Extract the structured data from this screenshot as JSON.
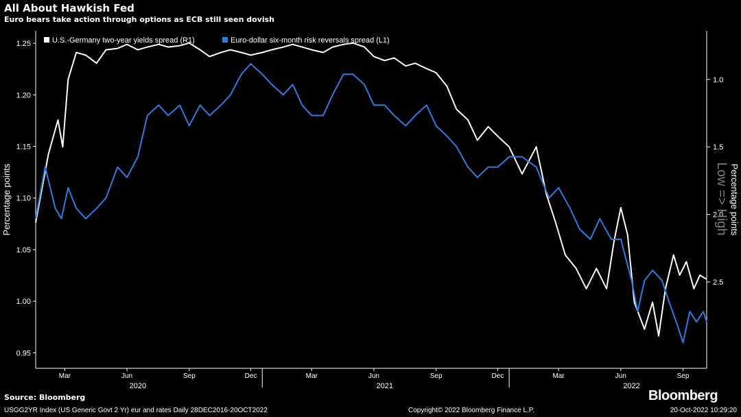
{
  "title": "All About Hawkish Fed",
  "subtitle": "Euro bears take action through options as ECB still seen dovish",
  "source": "Source: Bloomberg",
  "logo": "Bloomberg",
  "footer": {
    "left": "USGG2YR Index (US Generic Govt 2 Yr) eur and rates  Daily 28DEC2016-20OCT2022",
    "center": "Copyright© 2022 Bloomberg Finance L.P.",
    "right": "20-Oct-2022 10:29:20"
  },
  "colors": {
    "background": "#000000",
    "us_germany": "#ffffff",
    "risk_reversals": "#2a7de1",
    "axis": "#ffffff",
    "side_annotation": "#7f7f7f"
  },
  "chart_data": {
    "type": "line",
    "ylabel_left": "Percentage points",
    "ylabel_right": "Percentage points",
    "right_annotation": "Low => High",
    "left_axis": {
      "min": 0.935,
      "max": 1.262,
      "ticks": [
        "0.95",
        "1.00",
        "1.05",
        "1.10",
        "1.15",
        "1.20",
        "1.25"
      ]
    },
    "right_axis": {
      "inverted": true,
      "min": 0.64,
      "max": 3.14,
      "ticks": [
        "1.0",
        "1.5",
        "2.0",
        "2.5"
      ]
    },
    "x_axis": {
      "start": "2020-02-01",
      "end": "2022-10-20",
      "month_ticks": [
        {
          "label": "Mar",
          "date": "2020-03-15"
        },
        {
          "label": "Jun",
          "date": "2020-06-15"
        },
        {
          "label": "Sep",
          "date": "2020-09-15"
        },
        {
          "label": "Dec",
          "date": "2020-12-15"
        },
        {
          "label": "Mar",
          "date": "2021-03-15"
        },
        {
          "label": "Jun",
          "date": "2021-06-15"
        },
        {
          "label": "Sep",
          "date": "2021-09-15"
        },
        {
          "label": "Dec",
          "date": "2021-12-15"
        },
        {
          "label": "Mar",
          "date": "2022-03-15"
        },
        {
          "label": "Jun",
          "date": "2022-06-15"
        },
        {
          "label": "Sep",
          "date": "2022-09-15"
        }
      ],
      "year_labels": [
        {
          "label": "2020",
          "date": "2020-07-01"
        },
        {
          "label": "2021",
          "date": "2021-07-01"
        },
        {
          "label": "2022",
          "date": "2022-07-01"
        }
      ],
      "year_dividers": [
        "2021-01-01",
        "2022-01-01"
      ]
    },
    "series": [
      {
        "name": "U.S.-Germany two-year yields spread (R1)",
        "axis": "right",
        "points": [
          [
            "2020-02-01",
            2.06
          ],
          [
            "2020-02-20",
            1.55
          ],
          [
            "2020-03-05",
            1.3
          ],
          [
            "2020-03-12",
            1.5
          ],
          [
            "2020-03-20",
            1.0
          ],
          [
            "2020-04-01",
            0.8
          ],
          [
            "2020-04-15",
            0.82
          ],
          [
            "2020-05-01",
            0.88
          ],
          [
            "2020-05-15",
            0.78
          ],
          [
            "2020-06-01",
            0.77
          ],
          [
            "2020-06-15",
            0.74
          ],
          [
            "2020-07-01",
            0.78
          ],
          [
            "2020-07-15",
            0.76
          ],
          [
            "2020-08-01",
            0.74
          ],
          [
            "2020-08-15",
            0.76
          ],
          [
            "2020-09-01",
            0.75
          ],
          [
            "2020-09-15",
            0.73
          ],
          [
            "2020-10-01",
            0.78
          ],
          [
            "2020-10-15",
            0.83
          ],
          [
            "2020-11-01",
            0.8
          ],
          [
            "2020-11-15",
            0.78
          ],
          [
            "2020-12-01",
            0.8
          ],
          [
            "2020-12-15",
            0.82
          ],
          [
            "2021-01-01",
            0.8
          ],
          [
            "2021-01-15",
            0.78
          ],
          [
            "2021-02-01",
            0.76
          ],
          [
            "2021-02-15",
            0.74
          ],
          [
            "2021-03-01",
            0.76
          ],
          [
            "2021-03-15",
            0.78
          ],
          [
            "2021-04-01",
            0.8
          ],
          [
            "2021-04-15",
            0.76
          ],
          [
            "2021-05-01",
            0.74
          ],
          [
            "2021-05-15",
            0.73
          ],
          [
            "2021-06-01",
            0.76
          ],
          [
            "2021-06-15",
            0.83
          ],
          [
            "2021-07-01",
            0.86
          ],
          [
            "2021-07-15",
            0.84
          ],
          [
            "2021-08-01",
            0.9
          ],
          [
            "2021-08-15",
            0.88
          ],
          [
            "2021-09-01",
            0.92
          ],
          [
            "2021-09-15",
            0.95
          ],
          [
            "2021-10-01",
            1.05
          ],
          [
            "2021-10-15",
            1.22
          ],
          [
            "2021-11-01",
            1.3
          ],
          [
            "2021-11-15",
            1.45
          ],
          [
            "2021-12-01",
            1.35
          ],
          [
            "2021-12-15",
            1.42
          ],
          [
            "2022-01-01",
            1.5
          ],
          [
            "2022-01-20",
            1.7
          ],
          [
            "2022-02-10",
            1.5
          ],
          [
            "2022-02-25",
            1.85
          ],
          [
            "2022-03-10",
            2.05
          ],
          [
            "2022-03-25",
            2.3
          ],
          [
            "2022-04-10",
            2.4
          ],
          [
            "2022-04-25",
            2.55
          ],
          [
            "2022-05-10",
            2.4
          ],
          [
            "2022-05-25",
            2.55
          ],
          [
            "2022-06-05",
            2.2
          ],
          [
            "2022-06-15",
            1.95
          ],
          [
            "2022-06-25",
            2.15
          ],
          [
            "2022-07-05",
            2.65
          ],
          [
            "2022-07-20",
            2.85
          ],
          [
            "2022-08-01",
            2.65
          ],
          [
            "2022-08-10",
            2.9
          ],
          [
            "2022-08-20",
            2.55
          ],
          [
            "2022-09-01",
            2.3
          ],
          [
            "2022-09-10",
            2.45
          ],
          [
            "2022-09-20",
            2.35
          ],
          [
            "2022-10-01",
            2.55
          ],
          [
            "2022-10-10",
            2.45
          ],
          [
            "2022-10-20",
            2.48
          ]
        ]
      },
      {
        "name": "Euro-dollar six-month risk reversals spread (L1)",
        "axis": "left",
        "points": [
          [
            "2020-02-01",
            1.08
          ],
          [
            "2020-02-15",
            1.13
          ],
          [
            "2020-03-01",
            1.09
          ],
          [
            "2020-03-10",
            1.08
          ],
          [
            "2020-03-20",
            1.11
          ],
          [
            "2020-04-01",
            1.09
          ],
          [
            "2020-04-15",
            1.08
          ],
          [
            "2020-05-01",
            1.09
          ],
          [
            "2020-05-15",
            1.1
          ],
          [
            "2020-06-01",
            1.13
          ],
          [
            "2020-06-15",
            1.12
          ],
          [
            "2020-07-01",
            1.14
          ],
          [
            "2020-07-15",
            1.18
          ],
          [
            "2020-08-01",
            1.19
          ],
          [
            "2020-08-15",
            1.18
          ],
          [
            "2020-09-01",
            1.19
          ],
          [
            "2020-09-15",
            1.17
          ],
          [
            "2020-10-01",
            1.19
          ],
          [
            "2020-10-15",
            1.18
          ],
          [
            "2020-11-01",
            1.19
          ],
          [
            "2020-11-15",
            1.2
          ],
          [
            "2020-12-01",
            1.22
          ],
          [
            "2020-12-15",
            1.23
          ],
          [
            "2021-01-01",
            1.22
          ],
          [
            "2021-01-15",
            1.21
          ],
          [
            "2021-02-01",
            1.2
          ],
          [
            "2021-02-15",
            1.21
          ],
          [
            "2021-03-01",
            1.19
          ],
          [
            "2021-03-15",
            1.18
          ],
          [
            "2021-04-01",
            1.18
          ],
          [
            "2021-04-15",
            1.2
          ],
          [
            "2021-05-01",
            1.22
          ],
          [
            "2021-05-15",
            1.22
          ],
          [
            "2021-06-01",
            1.21
          ],
          [
            "2021-06-15",
            1.19
          ],
          [
            "2021-07-01",
            1.19
          ],
          [
            "2021-07-15",
            1.18
          ],
          [
            "2021-08-01",
            1.17
          ],
          [
            "2021-08-15",
            1.18
          ],
          [
            "2021-09-01",
            1.19
          ],
          [
            "2021-09-15",
            1.17
          ],
          [
            "2021-10-01",
            1.16
          ],
          [
            "2021-10-15",
            1.15
          ],
          [
            "2021-11-01",
            1.13
          ],
          [
            "2021-11-15",
            1.12
          ],
          [
            "2021-12-01",
            1.13
          ],
          [
            "2021-12-15",
            1.13
          ],
          [
            "2022-01-01",
            1.14
          ],
          [
            "2022-01-20",
            1.14
          ],
          [
            "2022-02-10",
            1.13
          ],
          [
            "2022-03-01",
            1.1
          ],
          [
            "2022-03-15",
            1.11
          ],
          [
            "2022-04-01",
            1.09
          ],
          [
            "2022-04-15",
            1.07
          ],
          [
            "2022-05-01",
            1.06
          ],
          [
            "2022-05-15",
            1.08
          ],
          [
            "2022-06-01",
            1.06
          ],
          [
            "2022-06-15",
            1.06
          ],
          [
            "2022-07-01",
            1.02
          ],
          [
            "2022-07-10",
            0.99
          ],
          [
            "2022-07-20",
            1.02
          ],
          [
            "2022-08-01",
            1.03
          ],
          [
            "2022-08-15",
            1.02
          ],
          [
            "2022-08-25",
            1.0
          ],
          [
            "2022-09-05",
            0.98
          ],
          [
            "2022-09-15",
            0.96
          ],
          [
            "2022-09-25",
            0.99
          ],
          [
            "2022-10-05",
            0.98
          ],
          [
            "2022-10-15",
            0.99
          ],
          [
            "2022-10-20",
            0.98
          ]
        ]
      }
    ]
  }
}
